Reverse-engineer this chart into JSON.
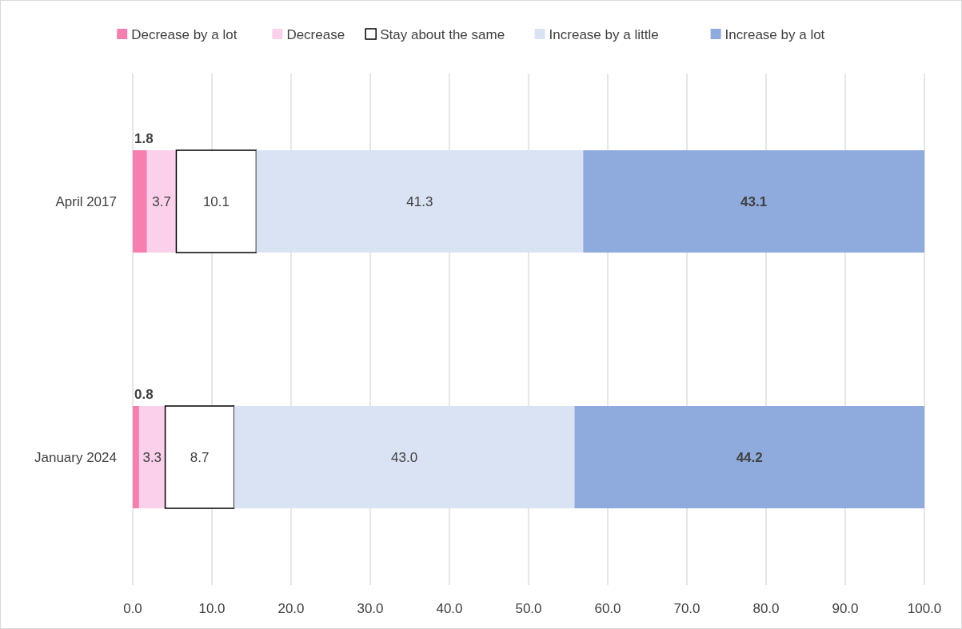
{
  "chart_data": {
    "type": "bar",
    "orientation": "horizontal",
    "stacked": true,
    "categories": [
      "April 2017",
      "January 2024"
    ],
    "series": [
      {
        "name": "Decrease by a lot",
        "color": "#f77fb0",
        "values": [
          1.8,
          0.8
        ],
        "value_labels": [
          "1.8",
          "0.8"
        ]
      },
      {
        "name": "Decrease",
        "color": "#fbd0ea",
        "values": [
          3.7,
          3.3
        ],
        "value_labels": [
          "3.7",
          "3.3"
        ]
      },
      {
        "name": "Stay about the same",
        "color": "#ffffff",
        "values": [
          10.1,
          8.7
        ],
        "value_labels": [
          "10.1",
          "8.7"
        ]
      },
      {
        "name": "Increase by a little",
        "color": "#dae3f3",
        "values": [
          41.3,
          43.0
        ],
        "value_labels": [
          "41.3",
          "43.0"
        ]
      },
      {
        "name": "Increase by a lot",
        "color": "#8faadc",
        "values": [
          43.1,
          44.2
        ],
        "value_labels": [
          "43.1",
          "44.2"
        ]
      }
    ],
    "xlim": [
      0,
      100
    ],
    "xticks": [
      {
        "value": 0,
        "label": "0.0"
      },
      {
        "value": 10,
        "label": "10.0"
      },
      {
        "value": 20,
        "label": "20.0"
      },
      {
        "value": 30,
        "label": "30.0"
      },
      {
        "value": 40,
        "label": "40.0"
      },
      {
        "value": 50,
        "label": "50.0"
      },
      {
        "value": 60,
        "label": "60.0"
      },
      {
        "value": 70,
        "label": "70.0"
      },
      {
        "value": 80,
        "label": "80.0"
      },
      {
        "value": 90,
        "label": "90.0"
      },
      {
        "value": 100,
        "label": "100.0"
      }
    ],
    "grid": "x",
    "legend": "top"
  }
}
